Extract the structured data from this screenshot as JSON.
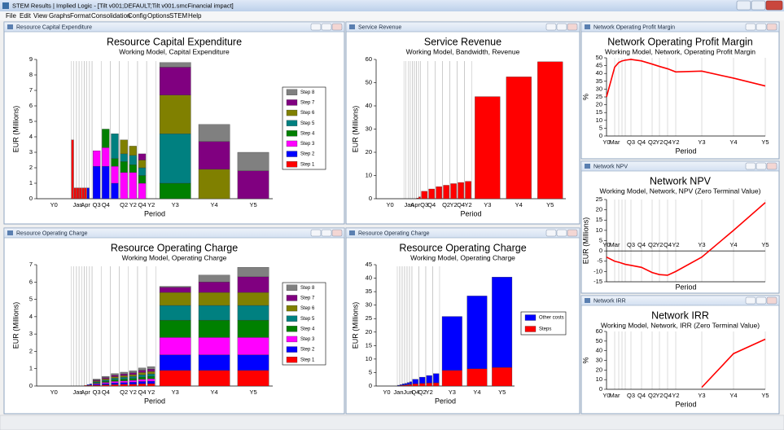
{
  "window": {
    "title": "STEM Results | Implied Logic - [Tilt v001;DEFAULT;Tilt v001.smcFinancial impact]",
    "menu": [
      "File",
      "Edit",
      "View",
      "Graphs",
      "Format",
      "Consolidation",
      "Config",
      "Options",
      "STEM",
      "Help"
    ]
  },
  "chart_data": [
    {
      "type": "stacked_bar",
      "title": "Resource Capital Expenditure",
      "subtitle": "Working Model, Capital Expenditure",
      "xlabel": "Period",
      "ylabel": "EUR (Millions)",
      "categories": [
        "Y0",
        null,
        null,
        "Jan",
        null,
        null,
        "Apr",
        null,
        null,
        "Q3",
        "Q4",
        null,
        "Q2",
        "Y2",
        "Q4",
        "Y2",
        "Y3",
        "Y4",
        "Y5"
      ],
      "ylim": [
        0,
        9
      ],
      "yticks": [
        0,
        1,
        2,
        3,
        4,
        5,
        6,
        7,
        8,
        9
      ],
      "series": [
        {
          "name": "Step 1",
          "color": "#ff0000",
          "values": [
            0,
            3.8,
            0.7,
            0.7,
            0.7,
            0.7,
            0.7,
            0,
            0,
            0,
            0,
            0,
            0,
            0,
            0,
            0,
            0,
            0,
            0
          ]
        },
        {
          "name": "Step 2",
          "color": "#0000ff",
          "values": [
            0,
            0,
            0,
            0,
            0,
            0,
            0,
            0.7,
            0,
            2.1,
            2.1,
            1.0,
            0,
            0,
            0,
            0,
            0,
            0,
            0
          ]
        },
        {
          "name": "Step 3",
          "color": "#ff00ff",
          "values": [
            0,
            0,
            0,
            0,
            0,
            0,
            0,
            0,
            0,
            1.0,
            1.2,
            1.1,
            1.7,
            1.7,
            1.0,
            0,
            0,
            0,
            0
          ]
        },
        {
          "name": "Step 4",
          "color": "#008000",
          "values": [
            0,
            0,
            0,
            0,
            0,
            0,
            0,
            0,
            0,
            0,
            1.2,
            0.5,
            0.7,
            0.5,
            0.5,
            0,
            1.0,
            0,
            0
          ]
        },
        {
          "name": "Step 5",
          "color": "#008080",
          "values": [
            0,
            0,
            0,
            0,
            0,
            0,
            0,
            0,
            0,
            0,
            0,
            1.6,
            0.5,
            0.6,
            0.5,
            0,
            3.2,
            0,
            0
          ]
        },
        {
          "name": "Step 6",
          "color": "#808000",
          "values": [
            0,
            0,
            0,
            0,
            0,
            0,
            0,
            0,
            0,
            0,
            0,
            0,
            0.9,
            0.6,
            0.5,
            0,
            2.5,
            1.9,
            0
          ]
        },
        {
          "name": "Step 7",
          "color": "#800080",
          "values": [
            0,
            0,
            0,
            0,
            0,
            0,
            0,
            0,
            0,
            0,
            0,
            0,
            0,
            0,
            0.4,
            0,
            1.8,
            1.8,
            1.8
          ]
        },
        {
          "name": "Step 8",
          "color": "#808080",
          "values": [
            0,
            0,
            0,
            0,
            0,
            0,
            0,
            0,
            0,
            0,
            0,
            0,
            0,
            0,
            0,
            0,
            0.3,
            1.1,
            1.2
          ]
        }
      ]
    },
    {
      "type": "bar",
      "title": "Service Revenue",
      "subtitle": "Working Model, Bandwidth, Revenue",
      "xlabel": "Period",
      "ylabel": "EUR (Millions)",
      "categories": [
        "Y0",
        null,
        null,
        "Jan",
        null,
        null,
        "Apr",
        null,
        null,
        "Q3",
        "Q4",
        null,
        "Q2",
        "Y2",
        "Q4",
        "Y2",
        "Y3",
        "Y4",
        "Y5"
      ],
      "ylim": [
        0,
        60
      ],
      "yticks": [
        0,
        10,
        20,
        30,
        40,
        50,
        60
      ],
      "color": "#ff0000",
      "values": [
        0,
        0,
        0,
        0,
        0,
        0,
        0,
        0.3,
        0.8,
        3.2,
        4.2,
        5.2,
        5.8,
        6.5,
        7.0,
        7.5,
        44,
        52.5,
        59
      ]
    },
    {
      "type": "line",
      "title": "Network Operating Profit Margin",
      "subtitle": "Working Model, Network, Operating Profit Margin",
      "xlabel": "Period",
      "ylabel": "%",
      "categories": [
        "Y0",
        "Mar",
        null,
        null,
        null,
        "Q3",
        "Q4",
        "Q2",
        "Y2",
        "Q4",
        "Y2",
        "Y3",
        "Y4",
        "Y5"
      ],
      "ylim": [
        0,
        50
      ],
      "yticks": [
        0,
        5,
        10,
        15,
        20,
        25,
        30,
        35,
        40,
        45,
        50
      ],
      "color": "#ff0000",
      "values": [
        25,
        44,
        47,
        48,
        48.5,
        49,
        48,
        46,
        44.5,
        43,
        41,
        41.5,
        37,
        32
      ]
    },
    {
      "type": "stacked_bar",
      "title": "Resource Operating Charge",
      "subtitle": "Working Model, Operating Charge",
      "xlabel": "Period",
      "ylabel": "EUR (Millions)",
      "categories": [
        "Y0",
        null,
        null,
        "Jan",
        null,
        null,
        "Apr",
        null,
        null,
        "Q3",
        "Q4",
        null,
        "Q2",
        "Y2",
        "Q4",
        "Y2",
        "Y3",
        "Y4",
        "Y5"
      ],
      "ylim": [
        0,
        7
      ],
      "yticks": [
        0,
        1,
        2,
        3,
        4,
        5,
        6,
        7
      ],
      "series": [
        {
          "name": "Step 1",
          "color": "#ff0000",
          "values": [
            0,
            0,
            0,
            0,
            0,
            0,
            0.04,
            0.04,
            0.06,
            0.05,
            0.07,
            0.09,
            0.1,
            0.11,
            0.13,
            0.14,
            0.9,
            0.9,
            0.9
          ]
        },
        {
          "name": "Step 2",
          "color": "#0000ff",
          "values": [
            0,
            0,
            0,
            0,
            0,
            0,
            0,
            0.04,
            0.06,
            0.05,
            0.07,
            0.09,
            0.1,
            0.11,
            0.13,
            0.14,
            0.9,
            0.9,
            0.9
          ]
        },
        {
          "name": "Step 3",
          "color": "#ff00ff",
          "values": [
            0,
            0,
            0,
            0,
            0,
            0,
            0,
            0,
            0,
            0.05,
            0.07,
            0.09,
            0.1,
            0.11,
            0.13,
            0.14,
            1.0,
            1.0,
            1.0
          ]
        },
        {
          "name": "Step 4",
          "color": "#008000",
          "values": [
            0,
            0,
            0,
            0,
            0,
            0,
            0,
            0,
            0,
            0.05,
            0.07,
            0.09,
            0.1,
            0.11,
            0.13,
            0.14,
            1.0,
            1.0,
            1.0
          ]
        },
        {
          "name": "Step 5",
          "color": "#008080",
          "values": [
            0,
            0,
            0,
            0,
            0,
            0,
            0,
            0,
            0,
            0.05,
            0.07,
            0.09,
            0.1,
            0.11,
            0.13,
            0.14,
            0.85,
            0.85,
            0.85
          ]
        },
        {
          "name": "Step 6",
          "color": "#808000",
          "values": [
            0,
            0,
            0,
            0,
            0,
            0,
            0,
            0,
            0,
            0.05,
            0.07,
            0.09,
            0.1,
            0.11,
            0.13,
            0.14,
            0.75,
            0.75,
            0.75
          ]
        },
        {
          "name": "Step 7",
          "color": "#800080",
          "values": [
            0,
            0,
            0,
            0,
            0,
            0,
            0,
            0,
            0,
            0.05,
            0.07,
            0.09,
            0.1,
            0.11,
            0.13,
            0.14,
            0.3,
            0.6,
            0.9
          ]
        },
        {
          "name": "Step 8",
          "color": "#808080",
          "values": [
            0,
            0,
            0,
            0,
            0,
            0,
            0,
            0,
            0,
            0.05,
            0.07,
            0.09,
            0.1,
            0.11,
            0.13,
            0.14,
            0.05,
            0.4,
            0.55
          ]
        }
      ]
    },
    {
      "type": "stacked_bar",
      "title": "Resource Operating Charge",
      "subtitle": "Working Model, Operating Charge",
      "xlabel": "Period",
      "ylabel": "EUR (Millions)",
      "categories": [
        "Y0",
        "Jan",
        null,
        null,
        null,
        "Jun",
        null,
        "Q4",
        "Q2",
        "Y2",
        null,
        "Y3",
        "Y4",
        "Y5"
      ],
      "ylim": [
        0,
        45
      ],
      "yticks": [
        0,
        5,
        10,
        15,
        20,
        25,
        30,
        35,
        40,
        45
      ],
      "series": [
        {
          "name": "Steps",
          "color": "#ff0000",
          "values": [
            0,
            0.1,
            0.2,
            0.3,
            0.4,
            0.5,
            0.6,
            0.8,
            1.0,
            1.1,
            1.2,
            5.8,
            6.4,
            6.9
          ]
        },
        {
          "name": "Other costs",
          "color": "#0000ff",
          "values": [
            0,
            0.2,
            0.3,
            0.5,
            0.6,
            0.8,
            1.0,
            1.7,
            2.3,
            2.8,
            3.4,
            20,
            27,
            33.5
          ]
        }
      ]
    },
    {
      "type": "line",
      "title": "Network NPV",
      "subtitle": "Working Model, Network, NPV (Zero Terminal Value)",
      "xlabel": "Period",
      "ylabel": "EUR (Millions)",
      "categories": [
        "Y0",
        "Mar",
        null,
        null,
        null,
        "Q3",
        "Q4",
        "Q2",
        "Y2",
        "Q4",
        "Y2",
        "Y3",
        "Y4",
        "Y5"
      ],
      "ylim": [
        -15,
        25
      ],
      "yticks": [
        -15,
        -10,
        -5,
        0,
        5,
        10,
        15,
        20,
        25
      ],
      "color": "#ff0000",
      "values": [
        -3,
        -5,
        -5.5,
        -6,
        -6.5,
        -7,
        -8,
        -10.5,
        -11.5,
        -11.8,
        -10,
        -3,
        10,
        23.5
      ]
    },
    {
      "type": "line",
      "title": "Network IRR",
      "subtitle": "Working Model, Network, IRR (Zero Terminal Value)",
      "xlabel": "Period",
      "ylabel": "%",
      "categories": [
        "Y0",
        "Mar",
        null,
        null,
        null,
        "Q3",
        "Q4",
        "Q2",
        "Y2",
        "Q4",
        "Y2",
        "Y3",
        "Y4",
        "Y5"
      ],
      "ylim": [
        0,
        60
      ],
      "yticks": [
        0,
        10,
        20,
        30,
        40,
        50,
        60
      ],
      "color": "#ff0000",
      "values": [
        null,
        null,
        null,
        null,
        null,
        null,
        null,
        null,
        null,
        null,
        null,
        2,
        37,
        52
      ]
    }
  ]
}
